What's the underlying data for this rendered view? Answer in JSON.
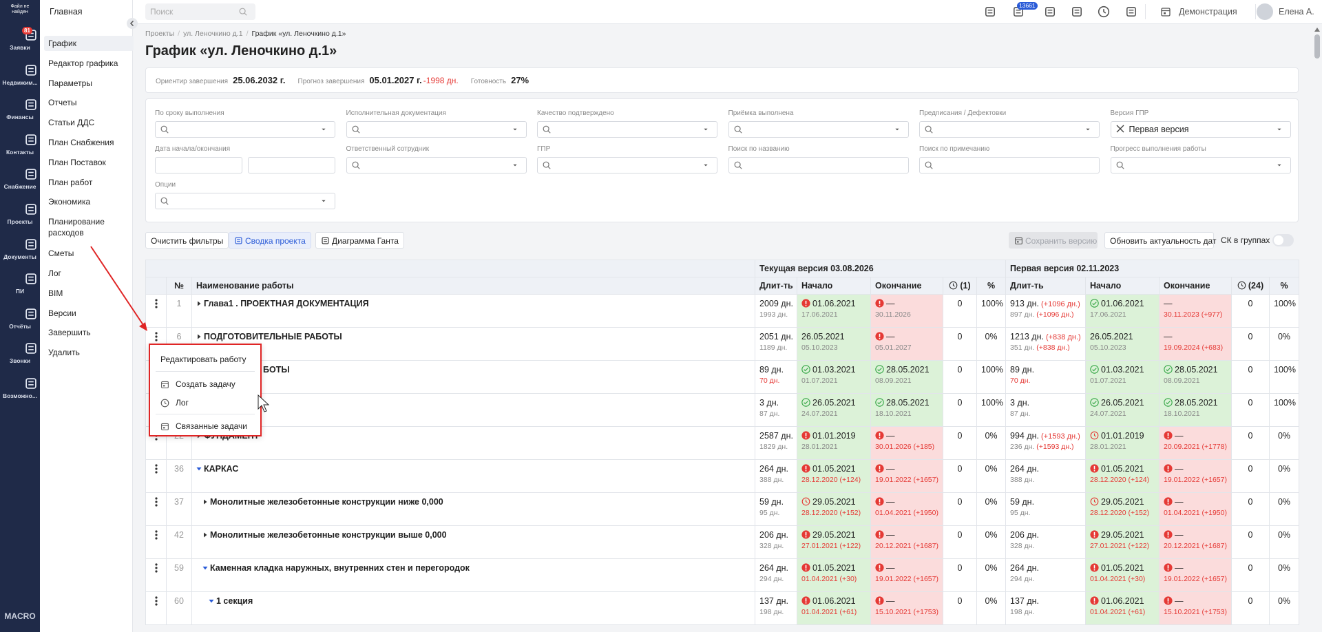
{
  "sidebar": {
    "logo": "Файл не найден",
    "items": [
      {
        "label": "Заявки",
        "badge": "81"
      },
      {
        "label": "Недвижим..."
      },
      {
        "label": "Финансы"
      },
      {
        "label": "Контакты"
      },
      {
        "label": "Снабжение"
      },
      {
        "label": "Проекты"
      },
      {
        "label": "Документы"
      },
      {
        "label": "ПИ"
      },
      {
        "label": "Отчёты"
      },
      {
        "label": "Звонки"
      },
      {
        "label": "Возможно..."
      }
    ],
    "footer": "MACRO"
  },
  "menu": {
    "title": "Главная",
    "active": 0,
    "items": [
      "График",
      "Редактор графика",
      "Параметры",
      "Отчеты",
      "Статьи ДДС",
      "План Снабжения",
      "План Поставок",
      "План работ",
      "Экономика",
      "Планирование расходов",
      "Сметы",
      "Лог",
      "BIM",
      "Версии",
      "Завершить",
      "Удалить"
    ]
  },
  "topbar": {
    "search": "Поиск",
    "notifications": "13661",
    "mode": "Демонстрация",
    "user": "Елена А."
  },
  "breadcrumbs": [
    "Проекты",
    "ул. Леночкино д.1",
    "График «ул. Леночкино д.1»"
  ],
  "title": "График «ул. Леночкино д.1»",
  "summary": [
    {
      "label": "Ориентир завершения",
      "value": "25.06.2032 г."
    },
    {
      "label": "Прогноз завершения",
      "value": "05.01.2027 г.",
      "delta": "-1998 дн."
    },
    {
      "label": "Готовность",
      "value": "27%"
    }
  ],
  "filters": [
    [
      {
        "label": "По сроку выполнения",
        "kind": "select"
      },
      {
        "label": "Исполнительная документация",
        "kind": "select"
      },
      {
        "label": "Качество подтверждено",
        "kind": "select"
      },
      {
        "label": "Приёмка выполнена",
        "kind": "select"
      },
      {
        "label": "Предписания / Дефектовки",
        "kind": "select"
      },
      {
        "label": "Версия ГПР",
        "kind": "value",
        "value": "Первая версия"
      }
    ],
    [
      {
        "label": "Дата начала/окончания",
        "kind": "date"
      },
      {
        "label": "Ответственный сотрудник",
        "kind": "select"
      },
      {
        "label": "ГПР",
        "kind": "select"
      },
      {
        "label": "Поиск по названию",
        "kind": "search"
      },
      {
        "label": "Поиск по примечанию",
        "kind": "search"
      },
      {
        "label": "Прогресс выполнения работы",
        "kind": "select"
      }
    ],
    [
      {
        "label": "Опции",
        "kind": "select"
      }
    ]
  ],
  "toolbar": {
    "left": [
      "Очистить фильтры",
      "Сводка проекта",
      "Диаграмма Ганта"
    ],
    "right": [
      "Сохранить версию",
      "Обновить актуальность дат"
    ],
    "toggle": "СК в группах"
  },
  "table": {
    "groups": [
      "Текущая версия 03.08.2026",
      "Первая версия 02.11.2023"
    ],
    "columns": [
      "№",
      "Наименование работы",
      "Длит-ть",
      "Начало",
      "Окончание",
      "(1)",
      "%",
      "Длит-ть",
      "Начало",
      "Окончание",
      "(24)",
      "%"
    ],
    "rows": [
      {
        "num": "1",
        "name": "Глава1 . ПРОЕКТНАЯ ДОКУМЕНТАЦИЯ",
        "level": 0,
        "expanded": false,
        "cells": [
          {
            "text": "2009 дн.",
            "sub": "1993 дн."
          },
          {
            "icon": "error",
            "text": "01.06.2021",
            "sub": "17.06.2021",
            "bg": "green"
          },
          {
            "icon": "error",
            "text": "—",
            "sub": "30.11.2026",
            "bg": "red"
          },
          {
            "text": "0"
          },
          {
            "text": "100%"
          },
          {
            "text": "913 дн.",
            "delta": "(+1096 дн.)",
            "sub": "897 дн.",
            "sub_delta": "(+1096 дн.)"
          },
          {
            "icon": "ok",
            "text": "01.06.2021",
            "sub": "17.06.2021",
            "bg": "green"
          },
          {
            "text": "—",
            "sub": "30.11.2023 (+977)",
            "sub_red": true,
            "bg": "red"
          },
          {
            "text": "0"
          },
          {
            "text": "100%"
          }
        ]
      },
      {
        "num": "6",
        "name": "ПОДГОТОВИТЕЛЬНЫЕ РАБОТЫ",
        "level": 0,
        "expanded": false,
        "cells": [
          {
            "text": "2051 дн.",
            "sub": "1189 дн."
          },
          {
            "text": "26.05.2021",
            "sub": "05.10.2023",
            "bg": "green"
          },
          {
            "icon": "error",
            "text": "—",
            "sub": "05.01.2027",
            "bg": "red"
          },
          {
            "text": "0"
          },
          {
            "text": "0%"
          },
          {
            "text": "1213 дн.",
            "delta": "(+838 дн.)",
            "sub": "351 дн.",
            "sub_delta": "(+838 дн.)"
          },
          {
            "text": "26.05.2021",
            "sub": "05.10.2023",
            "bg": "green"
          },
          {
            "text": "—",
            "sub": "19.09.2024 (+683)",
            "sub_red": true,
            "bg": "red"
          },
          {
            "text": "0"
          },
          {
            "text": "0%"
          }
        ]
      },
      {
        "num": null,
        "name": "БОТЫ",
        "level": 0,
        "expanded": false,
        "cells": [
          {
            "text": "89 дн.",
            "sub": "70 дн.",
            "sub_red": true
          },
          {
            "icon": "ok",
            "text": "01.03.2021",
            "sub": "01.07.2021",
            "bg": "green"
          },
          {
            "icon": "ok",
            "text": "28.05.2021",
            "sub": "08.09.2021",
            "bg": "green"
          },
          {
            "text": "0"
          },
          {
            "text": "100%"
          },
          {
            "text": "89 дн.",
            "sub": "70 дн.",
            "sub_red": true
          },
          {
            "icon": "ok",
            "text": "01.03.2021",
            "sub": "01.07.2021",
            "bg": "green"
          },
          {
            "icon": "ok",
            "text": "28.05.2021",
            "sub": "08.09.2021",
            "bg": "green"
          },
          {
            "text": "0"
          },
          {
            "text": "100%"
          }
        ]
      },
      {
        "num": null,
        "name": null,
        "level": 0,
        "expanded": false,
        "cells": [
          {
            "text": "3 дн.",
            "sub": "87 дн."
          },
          {
            "icon": "ok",
            "text": "26.05.2021",
            "sub": "24.07.2021",
            "bg": "green"
          },
          {
            "icon": "ok",
            "text": "28.05.2021",
            "sub": "18.10.2021",
            "bg": "green"
          },
          {
            "text": "0"
          },
          {
            "text": "100%"
          },
          {
            "text": "3 дн.",
            "sub": "87 дн."
          },
          {
            "icon": "ok",
            "text": "26.05.2021",
            "sub": "24.07.2021",
            "bg": "green"
          },
          {
            "icon": "ok",
            "text": "28.05.2021",
            "sub": "18.10.2021",
            "bg": "green"
          },
          {
            "text": "0"
          },
          {
            "text": "100%"
          }
        ]
      },
      {
        "num": "22",
        "name": "ФУНДАМЕНТ",
        "level": 0,
        "expanded": false,
        "cells": [
          {
            "text": "2587 дн.",
            "sub": "1829 дн."
          },
          {
            "icon": "error",
            "text": "01.01.2019",
            "sub": "28.01.2021",
            "bg": "green"
          },
          {
            "icon": "error",
            "text": "—",
            "sub": "30.01.2026 (+185)",
            "sub_red": true,
            "bg": "red"
          },
          {
            "text": "0"
          },
          {
            "text": "0%"
          },
          {
            "text": "994 дн.",
            "delta": "(+1593 дн.)",
            "sub": "236 дн.",
            "sub_delta": "(+1593 дн.)"
          },
          {
            "icon": "clock",
            "text": "01.01.2019",
            "sub": "28.01.2021",
            "bg": "green"
          },
          {
            "icon": "error",
            "text": "—",
            "sub": "20.09.2021 (+1778)",
            "sub_red": true,
            "bg": "red"
          },
          {
            "text": "0"
          },
          {
            "text": "0%"
          }
        ]
      },
      {
        "num": "36",
        "name": "КАРКАС",
        "level": 0,
        "expanded": true,
        "cells": [
          {
            "text": "264 дн.",
            "sub": "388 дн."
          },
          {
            "icon": "error",
            "text": "01.05.2021",
            "sub": "28.12.2020 (+124)",
            "sub_red": true,
            "bg": "green"
          },
          {
            "icon": "error",
            "text": "—",
            "sub": "19.01.2022 (+1657)",
            "sub_red": true,
            "bg": "red"
          },
          {
            "text": "0"
          },
          {
            "text": "0%"
          },
          {
            "text": "264 дн.",
            "sub": "388 дн."
          },
          {
            "icon": "error",
            "text": "01.05.2021",
            "sub": "28.12.2020 (+124)",
            "sub_red": true,
            "bg": "green"
          },
          {
            "icon": "error",
            "text": "—",
            "sub": "19.01.2022 (+1657)",
            "sub_red": true,
            "bg": "red"
          },
          {
            "text": "0"
          },
          {
            "text": "0%"
          }
        ]
      },
      {
        "num": "37",
        "name": "Монолитные железобетонные конструкции ниже 0,000",
        "level": 1,
        "expanded": false,
        "cells": [
          {
            "text": "59 дн.",
            "sub": "95 дн."
          },
          {
            "icon": "clock",
            "text": "29.05.2021",
            "sub": "28.12.2020 (+152)",
            "sub_red": true,
            "bg": "green"
          },
          {
            "icon": "error",
            "text": "—",
            "sub": "01.04.2021 (+1950)",
            "sub_red": true,
            "bg": "red"
          },
          {
            "text": "0"
          },
          {
            "text": "0%"
          },
          {
            "text": "59 дн.",
            "sub": "95 дн."
          },
          {
            "icon": "clock",
            "text": "29.05.2021",
            "sub": "28.12.2020 (+152)",
            "sub_red": true,
            "bg": "green"
          },
          {
            "icon": "error",
            "text": "—",
            "sub": "01.04.2021 (+1950)",
            "sub_red": true,
            "bg": "red"
          },
          {
            "text": "0"
          },
          {
            "text": "0%"
          }
        ]
      },
      {
        "num": "42",
        "name": "Монолитные железобетонные конструкции выше 0,000",
        "level": 1,
        "expanded": false,
        "cells": [
          {
            "text": "206 дн.",
            "sub": "328 дн."
          },
          {
            "icon": "error",
            "text": "29.05.2021",
            "sub": "27.01.2021 (+122)",
            "sub_red": true,
            "bg": "green"
          },
          {
            "icon": "error",
            "text": "—",
            "sub": "20.12.2021 (+1687)",
            "sub_red": true,
            "bg": "red"
          },
          {
            "text": "0"
          },
          {
            "text": "0%"
          },
          {
            "text": "206 дн.",
            "sub": "328 дн."
          },
          {
            "icon": "error",
            "text": "29.05.2021",
            "sub": "27.01.2021 (+122)",
            "sub_red": true,
            "bg": "green"
          },
          {
            "icon": "error",
            "text": "—",
            "sub": "20.12.2021 (+1687)",
            "sub_red": true,
            "bg": "red"
          },
          {
            "text": "0"
          },
          {
            "text": "0%"
          }
        ]
      },
      {
        "num": "59",
        "name": "Каменная кладка наружных, внутренних стен и перегородок",
        "level": 1,
        "expanded": true,
        "cells": [
          {
            "text": "264 дн.",
            "sub": "294 дн."
          },
          {
            "icon": "error",
            "text": "01.05.2021",
            "sub": "01.04.2021 (+30)",
            "sub_red": true,
            "bg": "green"
          },
          {
            "icon": "error",
            "text": "—",
            "sub": "19.01.2022 (+1657)",
            "sub_red": true,
            "bg": "red"
          },
          {
            "text": "0"
          },
          {
            "text": "0%"
          },
          {
            "text": "264 дн.",
            "sub": "294 дн."
          },
          {
            "icon": "error",
            "text": "01.05.2021",
            "sub": "01.04.2021 (+30)",
            "sub_red": true,
            "bg": "green"
          },
          {
            "icon": "error",
            "text": "—",
            "sub": "19.01.2022 (+1657)",
            "sub_red": true,
            "bg": "red"
          },
          {
            "text": "0"
          },
          {
            "text": "0%"
          }
        ]
      },
      {
        "num": "60",
        "name": "1 секция",
        "level": 2,
        "expanded": true,
        "cells": [
          {
            "text": "137 дн.",
            "sub": "198 дн."
          },
          {
            "icon": "error",
            "text": "01.06.2021",
            "sub": "01.04.2021 (+61)",
            "sub_red": true,
            "bg": "green"
          },
          {
            "icon": "error",
            "text": "—",
            "sub": "15.10.2021 (+1753)",
            "sub_red": true,
            "bg": "red"
          },
          {
            "text": "0"
          },
          {
            "text": "0%"
          },
          {
            "text": "137 дн.",
            "sub": "198 дн."
          },
          {
            "icon": "error",
            "text": "01.06.2021",
            "sub": "01.04.2021 (+61)",
            "sub_red": true,
            "bg": "green"
          },
          {
            "icon": "error",
            "text": "—",
            "sub": "15.10.2021 (+1753)",
            "sub_red": true,
            "bg": "red"
          },
          {
            "text": "0"
          },
          {
            "text": "0%"
          }
        ]
      }
    ]
  },
  "context_menu": {
    "items": [
      {
        "label": "Редактировать работу"
      },
      {
        "label": "Создать задачу",
        "icon": "task"
      },
      {
        "label": "Лог",
        "icon": "history"
      },
      {
        "label": "Связанные задачи",
        "icon": "tasks"
      }
    ]
  }
}
